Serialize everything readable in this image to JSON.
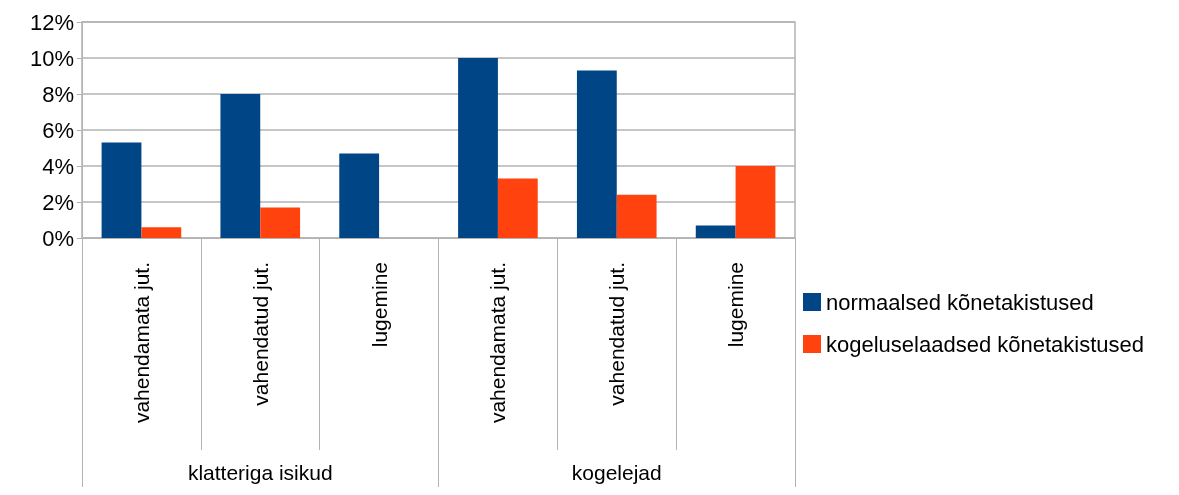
{
  "chart_data": {
    "type": "bar",
    "categories": [
      "vahendamata jut.",
      "vahendatud jut.",
      "lugemine",
      "vahendamata jut.",
      "vahendatud jut.",
      "lugemine"
    ],
    "annotations": [
      "klatteriga isikud",
      "kogelejad"
    ],
    "series": [
      {
        "name": "normaalsed kõnetakistused",
        "color": "#004586",
        "values": [
          5.3,
          8.0,
          4.7,
          10.0,
          9.3,
          0.7
        ]
      },
      {
        "name": "kogeluselaadsed kõnetakistused",
        "color": "#ff420e",
        "values": [
          0.6,
          1.7,
          0,
          3.3,
          2.4,
          4.0
        ]
      }
    ],
    "ylim": [
      0,
      12
    ],
    "yticks": [
      {
        "value": 0,
        "label": "0%"
      },
      {
        "value": 2,
        "label": "2%"
      },
      {
        "value": 4,
        "label": "4%"
      },
      {
        "value": 6,
        "label": "6%"
      },
      {
        "value": 8,
        "label": "8%"
      },
      {
        "value": 10,
        "label": "10%"
      },
      {
        "value": 12,
        "label": "12%"
      }
    ],
    "grid": "y",
    "legend": "right"
  }
}
